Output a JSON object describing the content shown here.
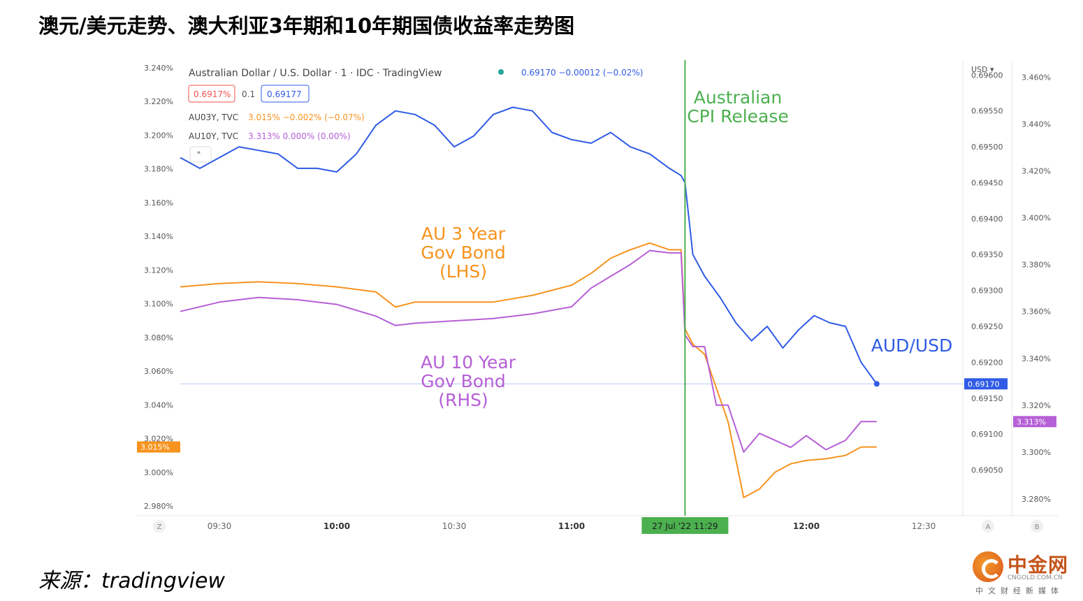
{
  "page": {
    "title": "澳元/美元走势、澳大利亚3年期和10年期国债收益率走势图",
    "source": "来源：tradingview",
    "logo": {
      "name": "中金网",
      "domain": "CNGOLD.COM.CN",
      "slogan": "中文财经新媒体"
    }
  },
  "legend": {
    "main_series": "Australian Dollar / U.S. Dollar · 1 · IDC · TradingView",
    "main_values": "0.69170 −0.00012 (−0.02%)",
    "bid": "0.6917%",
    "spread": "0.1",
    "ask": "0.69177",
    "au03": {
      "symbol": "AU03Y, TVC",
      "values": "3.015% −0.002% (−0.07%)"
    },
    "au10": {
      "symbol": "AU10Y, TVC",
      "values": "3.313% 0.000% (0.00%)"
    },
    "collapse": "˄"
  },
  "annotations": {
    "cpi_line1": "Australian",
    "cpi_line2": "CPI Release",
    "au3_line1": "AU 3 Year",
    "au3_line2": "Gov Bond",
    "au3_line3": "(LHS)",
    "au10_line1": "AU 10 Year",
    "au10_line2": "Gov Bond",
    "au10_line3": "(RHS)",
    "audusd": "AUD/USD"
  },
  "badges": {
    "left_last": "3.015%",
    "usd_last": "0.69170",
    "right_last": "3.313%",
    "time_highlight": "27 Jul '22   11:29",
    "usd_unit": "USD ▾",
    "corner_left": "Z",
    "corner_a": "A",
    "corner_b": "B"
  },
  "colors": {
    "audusd": "#2f5be6",
    "au3": "#f7931e",
    "au10": "#b65fd6",
    "cpi": "#4cb04f",
    "text": "#555555"
  },
  "chart_data": {
    "type": "line",
    "x_ticks": [
      "09:30",
      "10:00",
      "10:30",
      "11:00",
      "11:29",
      "12:00",
      "12:30"
    ],
    "x_range": [
      "09:20",
      "12:40"
    ],
    "left_axis": {
      "ticks": [
        "3.240%",
        "3.220%",
        "3.200%",
        "3.180%",
        "3.160%",
        "3.140%",
        "3.120%",
        "3.100%",
        "3.080%",
        "3.060%",
        "3.040%",
        "3.020%",
        "3.000%",
        "2.980%"
      ],
      "range": [
        2.98,
        3.24
      ]
    },
    "usd_axis": {
      "ticks": [
        "0.69600",
        "0.69550",
        "0.69500",
        "0.69450",
        "0.69400",
        "0.69350",
        "0.69300",
        "0.69250",
        "0.69200",
        "0.69150",
        "0.69100",
        "0.69050"
      ],
      "range": [
        0.69,
        0.6961
      ]
    },
    "right_axis": {
      "ticks": [
        "3.460%",
        "3.440%",
        "3.420%",
        "3.400%",
        "3.380%",
        "3.360%",
        "3.340%",
        "3.320%",
        "3.300%",
        "3.280%"
      ],
      "range": [
        3.277,
        3.464
      ]
    },
    "event_time": "11:29",
    "series": [
      {
        "name": "AUD/USD",
        "axis": "usd",
        "x": [
          "09:20",
          "09:25",
          "09:30",
          "09:35",
          "09:40",
          "09:45",
          "09:50",
          "09:55",
          "10:00",
          "10:05",
          "10:10",
          "10:15",
          "10:20",
          "10:25",
          "10:30",
          "10:35",
          "10:40",
          "10:45",
          "10:50",
          "10:55",
          "11:00",
          "11:05",
          "11:10",
          "11:15",
          "11:20",
          "11:25",
          "11:28",
          "11:29",
          "11:31",
          "11:34",
          "11:38",
          "11:42",
          "11:46",
          "11:50",
          "11:54",
          "11:58",
          "12:02",
          "12:06",
          "12:10",
          "12:14",
          "12:18"
        ],
        "y": [
          0.69485,
          0.6947,
          0.69485,
          0.695,
          0.69495,
          0.6949,
          0.6947,
          0.6947,
          0.69465,
          0.6949,
          0.6953,
          0.6955,
          0.69545,
          0.6953,
          0.695,
          0.69515,
          0.69545,
          0.69555,
          0.6955,
          0.6952,
          0.6951,
          0.69505,
          0.6952,
          0.695,
          0.6949,
          0.6947,
          0.6946,
          0.6945,
          0.6935,
          0.6932,
          0.6929,
          0.69255,
          0.6923,
          0.6925,
          0.6922,
          0.69245,
          0.69265,
          0.69255,
          0.6925,
          0.692,
          0.6917
        ]
      },
      {
        "name": "AU 3 Year Gov Bond",
        "axis": "left",
        "x": [
          "09:20",
          "09:30",
          "09:40",
          "09:50",
          "10:00",
          "10:10",
          "10:15",
          "10:20",
          "10:30",
          "10:40",
          "10:50",
          "11:00",
          "11:05",
          "11:10",
          "11:15",
          "11:20",
          "11:25",
          "11:28",
          "11:29",
          "11:31",
          "11:34",
          "11:37",
          "11:40",
          "11:44",
          "11:48",
          "11:52",
          "11:56",
          "12:00",
          "12:05",
          "12:10",
          "12:14",
          "12:18"
        ],
        "y": [
          3.11,
          3.112,
          3.113,
          3.112,
          3.11,
          3.107,
          3.098,
          3.101,
          3.101,
          3.101,
          3.105,
          3.111,
          3.118,
          3.127,
          3.132,
          3.136,
          3.132,
          3.132,
          3.085,
          3.076,
          3.07,
          3.05,
          3.03,
          2.985,
          2.99,
          3.0,
          3.005,
          3.007,
          3.008,
          3.01,
          3.015,
          3.015
        ]
      },
      {
        "name": "AU 10 Year Gov Bond",
        "axis": "right",
        "x": [
          "09:20",
          "09:30",
          "09:40",
          "09:50",
          "10:00",
          "10:10",
          "10:15",
          "10:20",
          "10:30",
          "10:40",
          "10:50",
          "11:00",
          "11:05",
          "11:10",
          "11:15",
          "11:20",
          "11:25",
          "11:28",
          "11:29",
          "11:31",
          "11:34",
          "11:37",
          "11:40",
          "11:44",
          "11:48",
          "11:52",
          "11:56",
          "12:00",
          "12:05",
          "12:10",
          "12:14",
          "12:18"
        ],
        "y": [
          3.36,
          3.364,
          3.366,
          3.365,
          3.363,
          3.358,
          3.354,
          3.355,
          3.356,
          3.357,
          3.359,
          3.362,
          3.37,
          3.375,
          3.38,
          3.386,
          3.385,
          3.385,
          3.35,
          3.345,
          3.345,
          3.32,
          3.32,
          3.3,
          3.308,
          3.305,
          3.302,
          3.307,
          3.301,
          3.305,
          3.313,
          3.313
        ]
      }
    ]
  }
}
